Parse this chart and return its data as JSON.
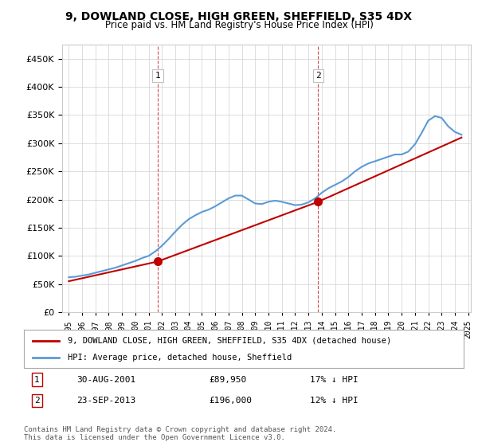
{
  "title": "9, DOWLAND CLOSE, HIGH GREEN, SHEFFIELD, S35 4DX",
  "subtitle": "Price paid vs. HM Land Registry's House Price Index (HPI)",
  "hpi_years": [
    1995,
    1995.5,
    1996,
    1996.5,
    1997,
    1997.5,
    1998,
    1998.5,
    1999,
    1999.5,
    2000,
    2000.5,
    2001,
    2001.5,
    2002,
    2002.5,
    2003,
    2003.5,
    2004,
    2004.5,
    2005,
    2005.5,
    2006,
    2006.5,
    2007,
    2007.5,
    2008,
    2008.5,
    2009,
    2009.5,
    2010,
    2010.5,
    2011,
    2011.5,
    2012,
    2012.5,
    2013,
    2013.5,
    2014,
    2014.5,
    2015,
    2015.5,
    2016,
    2016.5,
    2017,
    2017.5,
    2018,
    2018.5,
    2019,
    2019.5,
    2020,
    2020.5,
    2021,
    2021.5,
    2022,
    2022.5,
    2023,
    2023.5,
    2024,
    2024.5
  ],
  "hpi_values": [
    62000,
    63000,
    65000,
    67000,
    70000,
    73000,
    76000,
    79000,
    83000,
    87000,
    91000,
    96000,
    100000,
    108000,
    118000,
    130000,
    143000,
    155000,
    165000,
    172000,
    178000,
    182000,
    188000,
    195000,
    202000,
    207000,
    207000,
    200000,
    193000,
    192000,
    196000,
    198000,
    196000,
    193000,
    190000,
    191000,
    195000,
    202000,
    212000,
    220000,
    226000,
    232000,
    240000,
    250000,
    258000,
    264000,
    268000,
    272000,
    276000,
    280000,
    280000,
    285000,
    298000,
    318000,
    340000,
    348000,
    345000,
    330000,
    320000,
    315000
  ],
  "sale1_year": 2001.67,
  "sale1_price": 89950,
  "sale1_label": "1",
  "sale1_hpi_pct": "17% ↓ HPI",
  "sale1_date": "30-AUG-2001",
  "sale2_year": 2013.73,
  "sale2_price": 196000,
  "sale2_label": "2",
  "sale2_hpi_pct": "12% ↓ HPI",
  "sale2_date": "23-SEP-2013",
  "property_line_years": [
    1995,
    2001.67,
    2001.67,
    2013.73,
    2013.73,
    2024.5
  ],
  "property_line_values": [
    55000,
    89950,
    89950,
    196000,
    196000,
    310000
  ],
  "hpi_color": "#5b9bd5",
  "property_color": "#c00000",
  "vline1_year": 2001.67,
  "vline2_year": 2013.73,
  "xlim": [
    1994.5,
    2025.2
  ],
  "ylim": [
    0,
    475000
  ],
  "yticks": [
    0,
    50000,
    100000,
    150000,
    200000,
    250000,
    300000,
    350000,
    400000,
    450000
  ],
  "xtick_years": [
    1995,
    1996,
    1997,
    1998,
    1999,
    2000,
    2001,
    2002,
    2003,
    2004,
    2005,
    2006,
    2007,
    2008,
    2009,
    2010,
    2011,
    2012,
    2013,
    2014,
    2015,
    2016,
    2017,
    2018,
    2019,
    2020,
    2021,
    2022,
    2023,
    2024,
    2025
  ],
  "legend_line1": "9, DOWLAND CLOSE, HIGH GREEN, SHEFFIELD, S35 4DX (detached house)",
  "legend_line2": "HPI: Average price, detached house, Sheffield",
  "footnote": "Contains HM Land Registry data © Crown copyright and database right 2024.\nThis data is licensed under the Open Government Licence v3.0.",
  "background_color": "#ffffff",
  "grid_color": "#d0d0d0"
}
